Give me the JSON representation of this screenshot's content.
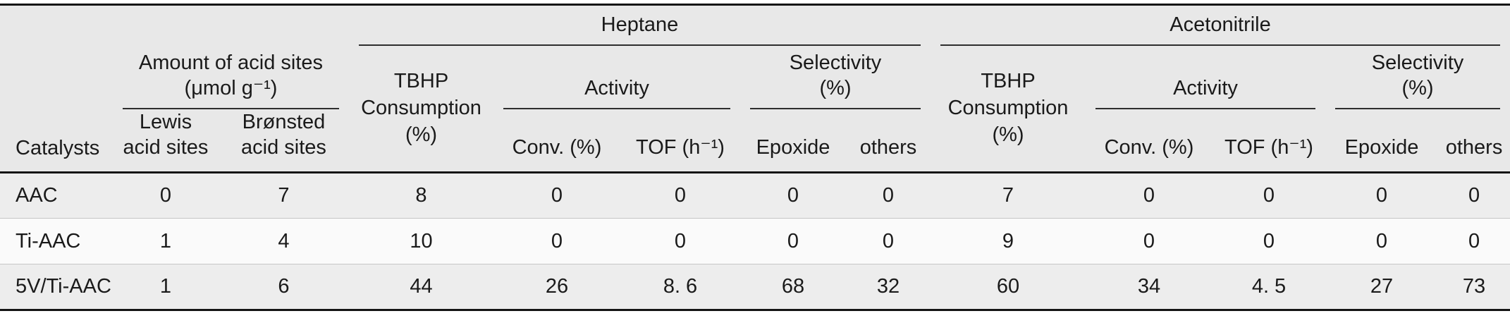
{
  "colors": {
    "header_bg": "#e8e8e8",
    "row_shaded": "#ededed",
    "row_light": "#fafafa",
    "table_border": "#141414",
    "group_rule": "#2e2e2e",
    "row_divider": "#c6c6c6",
    "text": "#1a1a1a"
  },
  "table": {
    "headers": {
      "catalysts": "Catalysts",
      "acid_sites_group": "Amount of acid sites\n(μmol g⁻¹)",
      "lewis": "Lewis\nacid sites",
      "bronsted": "Brønsted\nacid sites",
      "heptane": "Heptane",
      "acetonitrile": "Acetonitrile",
      "tbhp": "TBHP\nConsumption\n(%)",
      "activity": "Activity",
      "selectivity": "Selectivity\n(%)",
      "conv": "Conv. (%)",
      "tof": "TOF (h⁻¹)",
      "epoxide": "Epoxide",
      "others": "others"
    },
    "rows": [
      {
        "catalyst": "AAC",
        "values": [
          "0",
          "7",
          "8",
          "0",
          "0",
          "0",
          "0",
          "7",
          "0",
          "0",
          "0",
          "0"
        ]
      },
      {
        "catalyst": "Ti-AAC",
        "values": [
          "1",
          "4",
          "10",
          "0",
          "0",
          "0",
          "0",
          "9",
          "0",
          "0",
          "0",
          "0"
        ]
      },
      {
        "catalyst": "5V/Ti-AAC",
        "values": [
          "1",
          "6",
          "44",
          "26",
          "8. 6",
          "68",
          "32",
          "60",
          "34",
          "4. 5",
          "27",
          "73"
        ]
      }
    ]
  }
}
